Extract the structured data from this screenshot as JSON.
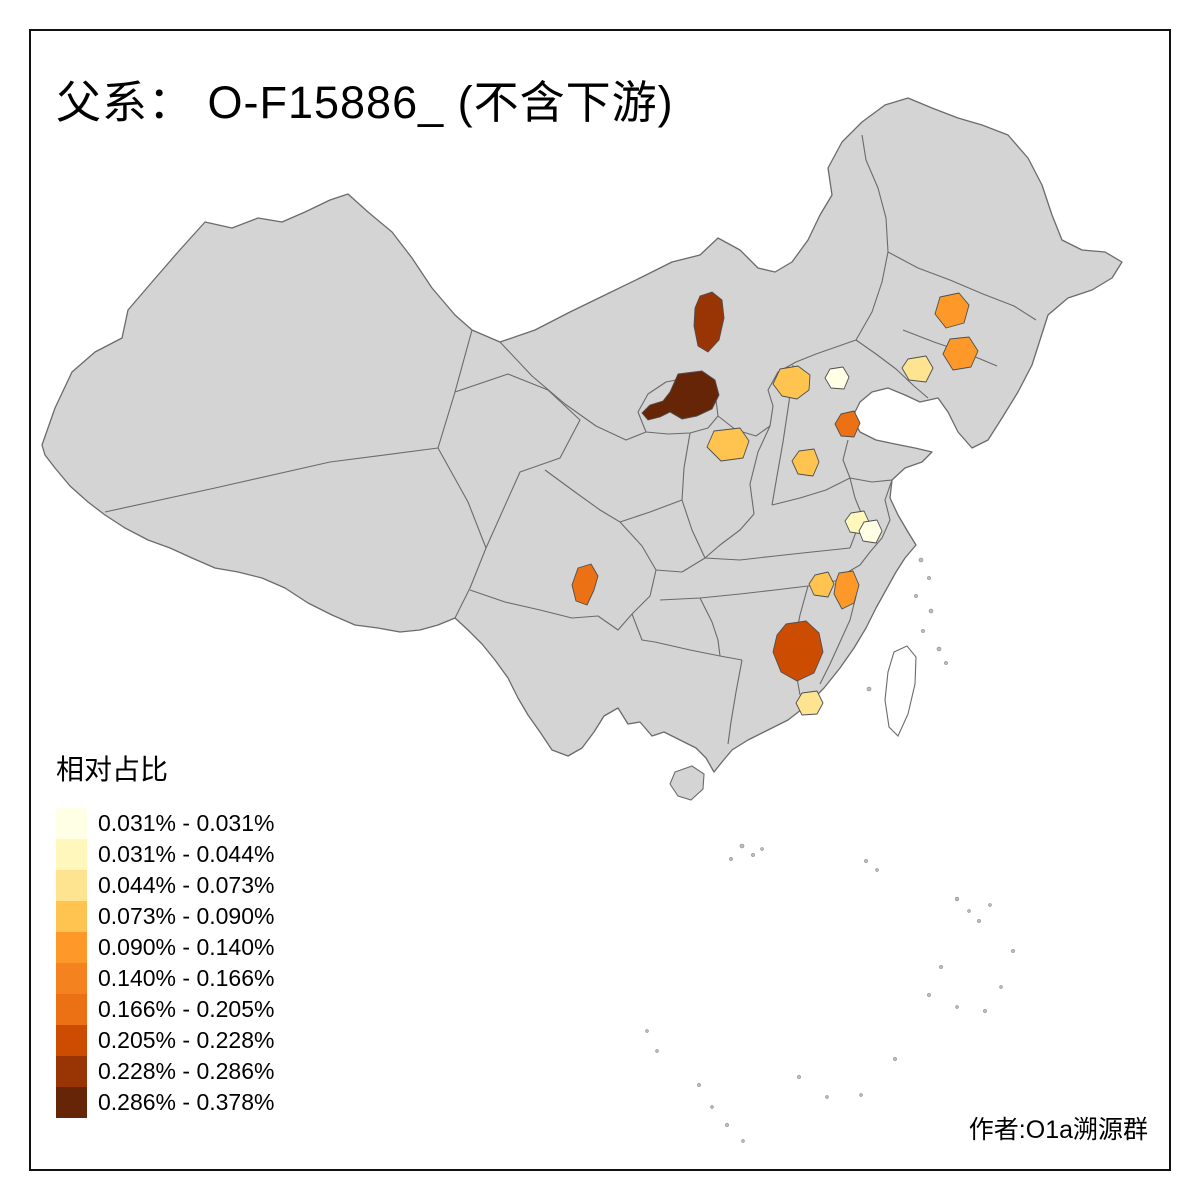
{
  "page": {
    "title": "父系： O-F15886_ (不含下游)",
    "author_credit": "作者:O1a溯源群",
    "background": "#ffffff",
    "frame_color": "#111111"
  },
  "legend": {
    "title": "相对占比",
    "bins": [
      {
        "label": "0.031% - 0.031%",
        "color": "#ffffe5"
      },
      {
        "label": "0.031% - 0.044%",
        "color": "#fff7bc"
      },
      {
        "label": "0.044% - 0.073%",
        "color": "#fee391"
      },
      {
        "label": "0.073% - 0.090%",
        "color": "#fec44f"
      },
      {
        "label": "0.090% - 0.140%",
        "color": "#fe9929"
      },
      {
        "label": "0.140% - 0.166%",
        "color": "#f4821f"
      },
      {
        "label": "0.166% - 0.205%",
        "color": "#ec7014"
      },
      {
        "label": "0.205% - 0.228%",
        "color": "#cc4c02"
      },
      {
        "label": "0.228% - 0.286%",
        "color": "#993404"
      },
      {
        "label": "0.286% - 0.378%",
        "color": "#662506"
      }
    ]
  },
  "map": {
    "base_fill": "#d4d4d4",
    "border_color": "#6b6b6b",
    "no_data_island_fill": "#ffffff"
  },
  "chart_data": {
    "type": "choropleth",
    "title": "父系： O-F15886_ (不含下游)",
    "legend_title": "相对占比",
    "bins": [
      {
        "label": "0.031% - 0.031%",
        "color": "#ffffe5"
      },
      {
        "label": "0.031% - 0.044%",
        "color": "#fff7bc"
      },
      {
        "label": "0.044% - 0.073%",
        "color": "#fee391"
      },
      {
        "label": "0.073% - 0.090%",
        "color": "#fec44f"
      },
      {
        "label": "0.090% - 0.140%",
        "color": "#fe9929"
      },
      {
        "label": "0.140% - 0.166%",
        "color": "#f4821f"
      },
      {
        "label": "0.166% - 0.205%",
        "color": "#ec7014"
      },
      {
        "label": "0.205% - 0.228%",
        "color": "#cc4c02"
      },
      {
        "label": "0.228% - 0.286%",
        "color": "#993404"
      },
      {
        "label": "0.286% - 0.378%",
        "color": "#662506"
      }
    ],
    "regions": [
      {
        "id": "r1",
        "bin": "0.228% - 0.286%",
        "color": "#993404"
      },
      {
        "id": "r2",
        "bin": "0.286% - 0.378%",
        "color": "#662506"
      },
      {
        "id": "r3",
        "bin": "0.073% - 0.090%",
        "color": "#fec44f"
      },
      {
        "id": "r4",
        "bin": "0.031% - 0.031%",
        "color": "#ffffe5"
      },
      {
        "id": "r5",
        "bin": "0.090% - 0.140%",
        "color": "#fe9929"
      },
      {
        "id": "r6",
        "bin": "0.090% - 0.140%",
        "color": "#fe9929"
      },
      {
        "id": "r7",
        "bin": "0.044% - 0.073%",
        "color": "#fee391"
      },
      {
        "id": "r8",
        "bin": "0.166% - 0.205%",
        "color": "#ec7014"
      },
      {
        "id": "r9",
        "bin": "0.073% - 0.090%",
        "color": "#fec44f"
      },
      {
        "id": "r10",
        "bin": "0.073% - 0.090%",
        "color": "#fec44f"
      },
      {
        "id": "r11",
        "bin": "0.031% - 0.044%",
        "color": "#fff7bc"
      },
      {
        "id": "r12",
        "bin": "0.031% - 0.031%",
        "color": "#ffffe5"
      },
      {
        "id": "r13",
        "bin": "0.166% - 0.205%",
        "color": "#ec7014"
      },
      {
        "id": "r14",
        "bin": "0.073% - 0.090%",
        "color": "#fec44f"
      },
      {
        "id": "r15",
        "bin": "0.090% - 0.140%",
        "color": "#fe9929"
      },
      {
        "id": "r16",
        "bin": "0.205% - 0.228%",
        "color": "#cc4c02"
      },
      {
        "id": "r17",
        "bin": "0.044% - 0.073%",
        "color": "#fee391"
      }
    ]
  }
}
